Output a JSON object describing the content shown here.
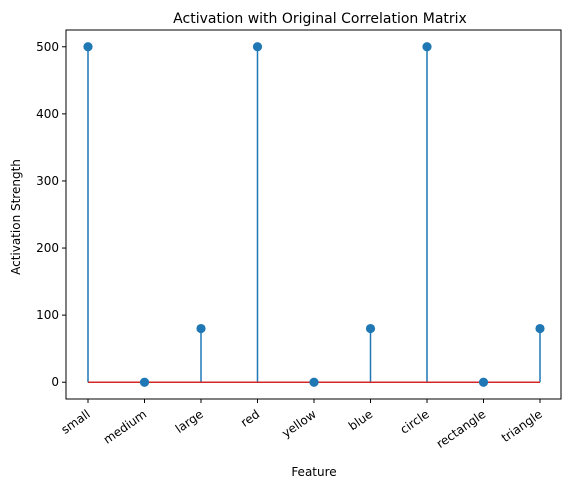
{
  "chart_data": {
    "type": "stem",
    "title": "Activation with Original Correlation Matrix",
    "xlabel": "Feature",
    "ylabel": "Activation Strength",
    "categories": [
      "small",
      "medium",
      "large",
      "red",
      "yellow",
      "blue",
      "circle",
      "rectangle",
      "triangle"
    ],
    "values": [
      500,
      0,
      80,
      500,
      0,
      80,
      500,
      0,
      80
    ],
    "ylim": [
      -25,
      525
    ],
    "yticks": [
      0,
      100,
      200,
      300,
      400,
      500
    ],
    "grid": false,
    "x_tick_rotation_deg": 35,
    "colors": {
      "stem": "#1f77b4",
      "marker": "#1f77b4",
      "baseline": "#d62728",
      "axes": "#000000"
    }
  }
}
